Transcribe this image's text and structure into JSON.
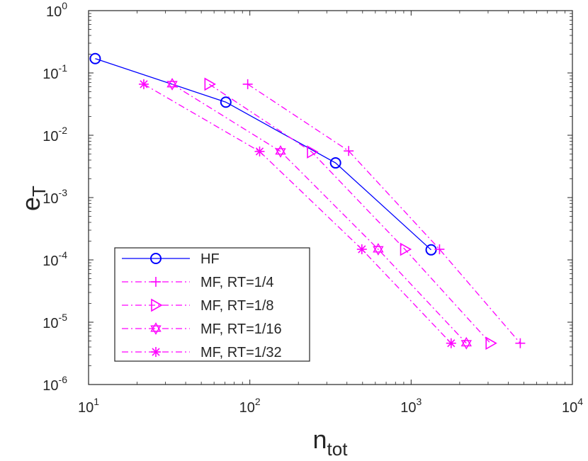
{
  "chart_data": {
    "type": "line",
    "xscale": "log",
    "yscale": "log",
    "xlim": [
      10,
      10000
    ],
    "ylim": [
      1e-06,
      1
    ],
    "xlabel": "n",
    "xlabel_sub": "tot",
    "ylabel": "e",
    "ylabel_sub": "T",
    "x_ticks": [
      {
        "value": 10,
        "base": "10",
        "exp": "1"
      },
      {
        "value": 100,
        "base": "10",
        "exp": "2"
      },
      {
        "value": 1000,
        "base": "10",
        "exp": "3"
      },
      {
        "value": 10000,
        "base": "10",
        "exp": "4"
      }
    ],
    "y_ticks": [
      {
        "value": 1,
        "base": "10",
        "exp": "0"
      },
      {
        "value": 0.1,
        "base": "10",
        "exp": "-1"
      },
      {
        "value": 0.01,
        "base": "10",
        "exp": "-2"
      },
      {
        "value": 0.001,
        "base": "10",
        "exp": "-3"
      },
      {
        "value": 0.0001,
        "base": "10",
        "exp": "-4"
      },
      {
        "value": 1e-05,
        "base": "10",
        "exp": "-5"
      },
      {
        "value": 1e-06,
        "base": "10",
        "exp": "-6"
      }
    ],
    "grid": false,
    "legend_position": "bottom-left",
    "series": [
      {
        "name": "HF",
        "color": "#0000ff",
        "marker": "circle",
        "line": "solid",
        "x": [
          11,
          71,
          340,
          1330
        ],
        "y": [
          0.17,
          0.034,
          0.0036,
          0.000145
        ]
      },
      {
        "name": "MF, RT=1/4",
        "color": "#ff00ff",
        "marker": "plus",
        "line": "dashdot",
        "x": [
          97,
          410,
          1500,
          4750
        ],
        "y": [
          0.066,
          0.0056,
          0.000148,
          4.6e-06
        ]
      },
      {
        "name": "MF, RT=1/8",
        "color": "#ff00ff",
        "marker": "triangle-right",
        "line": "dashdot",
        "x": [
          56,
          242,
          915,
          3100
        ],
        "y": [
          0.066,
          0.0054,
          0.000148,
          4.6e-06
        ]
      },
      {
        "name": "MF, RT=1/16",
        "color": "#ff00ff",
        "marker": "hexagram",
        "line": "dashdot",
        "x": [
          33,
          155,
          625,
          2200
        ],
        "y": [
          0.066,
          0.0055,
          0.000148,
          4.6e-06
        ]
      },
      {
        "name": "MF, RT=1/32",
        "color": "#ff00ff",
        "marker": "asterisk",
        "line": "dashdot",
        "x": [
          22,
          115,
          495,
          1770
        ],
        "y": [
          0.066,
          0.0055,
          0.000148,
          4.6e-06
        ]
      }
    ]
  }
}
